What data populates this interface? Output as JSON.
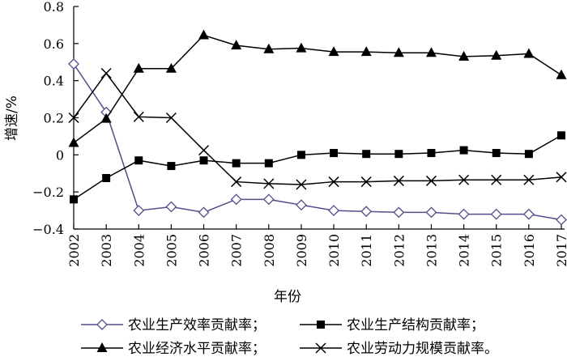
{
  "chart_data": {
    "type": "line",
    "xlabel": "年份",
    "ylabel": "增速/%",
    "x": [
      "2002",
      "2003",
      "2004",
      "2005",
      "2006",
      "2007",
      "2008",
      "2009",
      "2010",
      "2011",
      "2012",
      "2013",
      "2014",
      "2015",
      "2016",
      "2017"
    ],
    "ylim": [
      -0.4,
      0.8
    ],
    "yticks": [
      "0.8",
      "0.6",
      "0.4",
      "0.2",
      "0",
      "−0.2",
      "−0.4"
    ],
    "ytick_values": [
      0.8,
      0.6,
      0.4,
      0.2,
      0,
      -0.2,
      -0.4
    ],
    "grid": false,
    "legend_position": "bottom",
    "series": [
      {
        "name": "农业生产效率贡献率；",
        "marker": "diamond",
        "color": "#5a4a8a",
        "values": [
          0.49,
          0.23,
          -0.3,
          -0.28,
          -0.31,
          -0.24,
          -0.24,
          -0.27,
          -0.3,
          -0.305,
          -0.31,
          -0.31,
          -0.32,
          -0.32,
          -0.32,
          -0.35
        ]
      },
      {
        "name": "农业生产结构贡献率；",
        "marker": "square",
        "color": "#000000",
        "values": [
          -0.24,
          -0.125,
          -0.03,
          -0.06,
          -0.03,
          -0.045,
          -0.045,
          0.0,
          0.01,
          0.005,
          0.005,
          0.01,
          0.025,
          0.01,
          0.005,
          0.105
        ]
      },
      {
        "name": "农业经济水平贡献率；",
        "marker": "triangle",
        "color": "#000000",
        "values": [
          0.065,
          0.195,
          0.465,
          0.465,
          0.645,
          0.59,
          0.57,
          0.575,
          0.555,
          0.555,
          0.55,
          0.55,
          0.53,
          0.535,
          0.545,
          0.43
        ]
      },
      {
        "name": "农业劳动力规模贡献率。",
        "marker": "x",
        "color": "#000000",
        "values": [
          0.2,
          0.44,
          0.205,
          0.2,
          0.025,
          -0.145,
          -0.155,
          -0.16,
          -0.145,
          -0.145,
          -0.14,
          -0.14,
          -0.135,
          -0.135,
          -0.135,
          -0.12
        ]
      }
    ]
  }
}
